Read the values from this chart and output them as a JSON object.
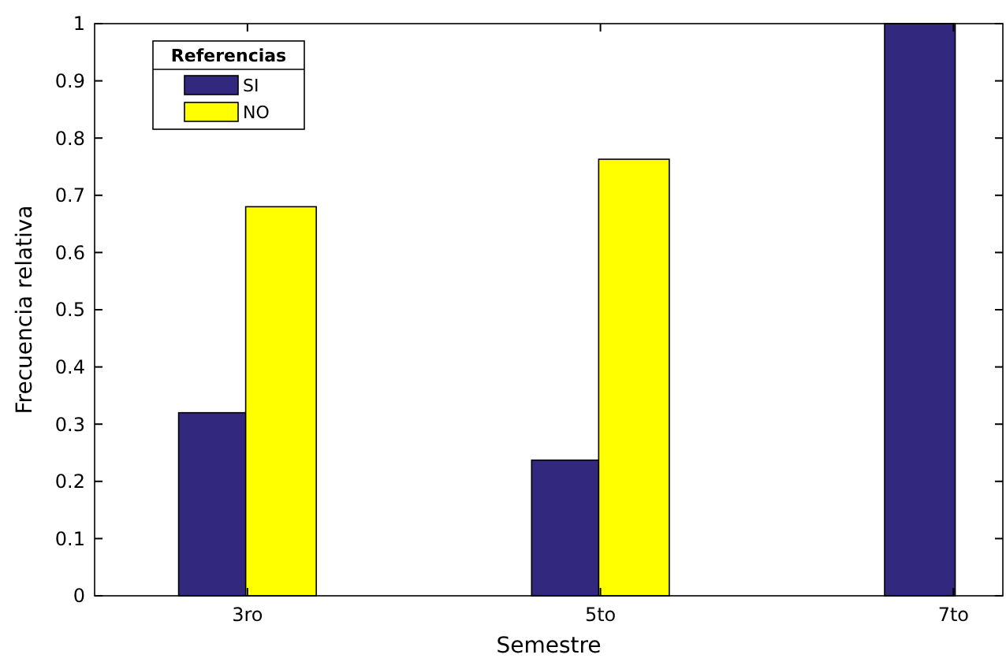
{
  "chart_data": {
    "type": "bar",
    "xlabel": "Semestre",
    "ylabel": "Frecuencia relativa",
    "legend_title": "Referencias",
    "categories": [
      "3ro",
      "5to",
      "7to"
    ],
    "series": [
      {
        "name": "SI",
        "color": "#32297f",
        "values": [
          0.32,
          0.237,
          1
        ]
      },
      {
        "name": "NO",
        "color": "#ffff00",
        "values": [
          0.68,
          0.763,
          0
        ]
      }
    ],
    "ylim": [
      0,
      1
    ],
    "yticks": [
      0,
      0.1,
      0.2,
      0.3,
      0.4,
      0.5,
      0.6,
      0.7,
      0.8,
      0.9,
      1
    ],
    "legend": "top left",
    "grid": false
  }
}
